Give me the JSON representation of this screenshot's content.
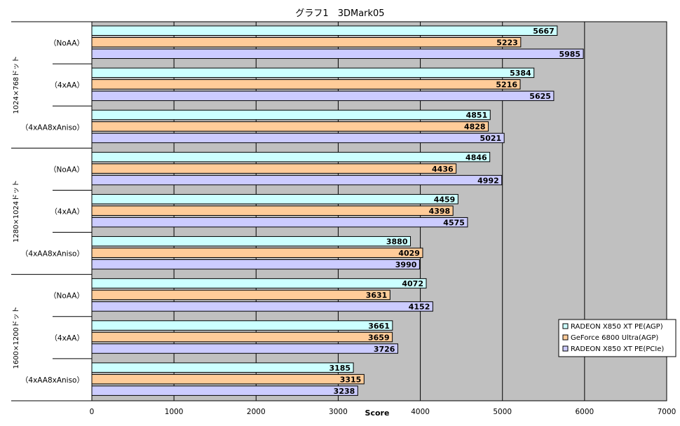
{
  "chart_data": {
    "type": "bar",
    "orientation": "horizontal",
    "title": "グラフ1　3DMark05",
    "xlabel": "Score",
    "xlim": [
      0,
      7000
    ],
    "xticks": [
      0,
      1000,
      2000,
      3000,
      4000,
      5000,
      6000,
      7000
    ],
    "grid": true,
    "legend_position": "bottom-right",
    "plot_background": "#c0c0c0",
    "groups": [
      {
        "label": "1024×768ドット",
        "categories": [
          "（NoAA）",
          "（4xAA）",
          "（4xAA8xAniso）"
        ]
      },
      {
        "label": "1280×1024ドット",
        "categories": [
          "（NoAA）",
          "（4xAA）",
          "（4xAA8xAniso）"
        ]
      },
      {
        "label": "1600×1200ドット",
        "categories": [
          "（NoAA）",
          "（4xAA）",
          "（4xAA8xAniso）"
        ]
      }
    ],
    "series": [
      {
        "name": "RADEON X850 XT PE(AGP)",
        "color": "#ccffff",
        "values": [
          5667,
          5384,
          4851,
          4846,
          4459,
          3880,
          4072,
          3661,
          3185
        ]
      },
      {
        "name": "GeForce 6800 Ultra(AGP)",
        "color": "#ffcc99",
        "values": [
          5223,
          5216,
          4828,
          4436,
          4398,
          4029,
          3631,
          3659,
          3315
        ]
      },
      {
        "name": "RADEON X850 XT PE(PCIe)",
        "color": "#ccccff",
        "values": [
          5985,
          5625,
          5021,
          4992,
          4575,
          3990,
          4152,
          3726,
          3238
        ]
      }
    ]
  }
}
